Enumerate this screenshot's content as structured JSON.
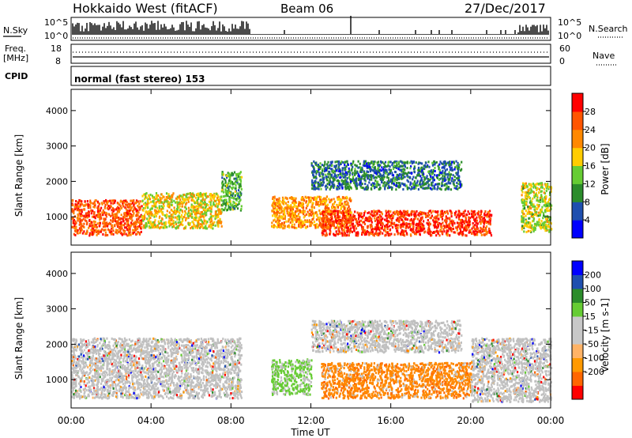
{
  "header": {
    "station": "Hokkaido West (fitACF)",
    "beam": "Beam 06",
    "date": "27/Dec/2017"
  },
  "panels": {
    "nsky": {
      "label": "N.Sky",
      "tick_high": "10^5",
      "tick_low": "10^0"
    },
    "nsearch": {
      "label": "N.Search",
      "tick_high": "10^5",
      "tick_low": "10^0"
    },
    "freq": {
      "label_line1": "Freq.",
      "label_line2": "[MHz]",
      "tick_high": "18",
      "tick_low": "8"
    },
    "nave": {
      "label": "Nave",
      "tick_high": "60",
      "tick_low": "0"
    },
    "cpid": {
      "label": "CPID",
      "value": "normal (fast stereo) 153"
    }
  },
  "colors": {
    "power": [
      "#0000ff",
      "#1f4faf",
      "#2b8c2b",
      "#66cc33",
      "#ffcc00",
      "#ff8800",
      "#ff5500",
      "#ff0000"
    ],
    "velocity": [
      "#ff0000",
      "#ff6600",
      "#ff9900",
      "#ffb366",
      "#c8c8c8",
      "#c8c8c8",
      "#66cc33",
      "#2b8c2b",
      "#1f4faf",
      "#0000ff"
    ],
    "velocity_dominant": "#ff8800",
    "velocity_ground": "#c0c0c0"
  },
  "chart_data": [
    {
      "type": "heatmap",
      "title": "Power",
      "ylabel": "Slant Range [km]",
      "xlabel": "",
      "ylim": [
        200,
        4600
      ],
      "yticks": [
        "1000",
        "2000",
        "3000",
        "4000"
      ],
      "xticks": [],
      "colorbar": {
        "label": "Power [dB]",
        "range": [
          0,
          32
        ],
        "ticks": [
          "4",
          "8",
          "12",
          "16",
          "20",
          "24",
          "28"
        ]
      },
      "echo_regions": [
        {
          "t_start": 0.0,
          "t_end": 3.5,
          "r_low": 500,
          "r_high": 1500,
          "level": 26
        },
        {
          "t_start": 3.5,
          "t_end": 7.5,
          "r_low": 700,
          "r_high": 1700,
          "level": 18
        },
        {
          "t_start": 7.5,
          "t_end": 8.5,
          "r_low": 1200,
          "r_high": 2300,
          "level": 12
        },
        {
          "t_start": 10.0,
          "t_end": 14.0,
          "r_low": 700,
          "r_high": 1600,
          "level": 22
        },
        {
          "t_start": 12.0,
          "t_end": 19.5,
          "r_low": 1800,
          "r_high": 2600,
          "level": 8
        },
        {
          "t_start": 12.5,
          "t_end": 21.0,
          "r_low": 500,
          "r_high": 1200,
          "level": 28
        },
        {
          "t_start": 22.5,
          "t_end": 24.0,
          "r_low": 600,
          "r_high": 2000,
          "level": 16
        }
      ]
    },
    {
      "type": "heatmap",
      "title": "Velocity",
      "ylabel": "Slant Range [km]",
      "xlabel": "Time UT",
      "ylim": [
        200,
        4600
      ],
      "yticks": [
        "1000",
        "2000",
        "3000",
        "4000"
      ],
      "xticks": [
        "00:00",
        "04:00",
        "08:00",
        "12:00",
        "16:00",
        "20:00",
        "00:00"
      ],
      "colorbar": {
        "label": "Velocity [m s-1]",
        "range": [
          -250,
          250
        ],
        "ticks": [
          "200",
          "100",
          "50",
          "15",
          "-15",
          "-50",
          "-100",
          "-200"
        ]
      },
      "echo_regions": [
        {
          "t_start": 0.0,
          "t_end": 8.5,
          "r_low": 500,
          "r_high": 2200,
          "level": 0
        },
        {
          "t_start": 10.0,
          "t_end": 12.0,
          "r_low": 600,
          "r_high": 1600,
          "level": 30
        },
        {
          "t_start": 12.0,
          "t_end": 19.5,
          "r_low": 1800,
          "r_high": 2700,
          "level": 0
        },
        {
          "t_start": 12.5,
          "t_end": 20.0,
          "r_low": 500,
          "r_high": 1500,
          "level": -60
        },
        {
          "t_start": 20.0,
          "t_end": 24.0,
          "r_low": 400,
          "r_high": 2200,
          "level": 0
        }
      ]
    }
  ]
}
